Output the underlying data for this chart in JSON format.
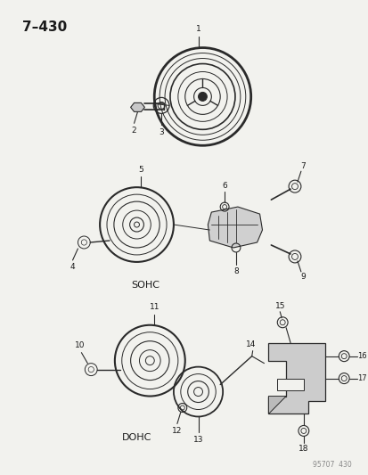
{
  "title": "7–430",
  "bg_color": "#f2f2ee",
  "line_color": "#2a2a2a",
  "text_color": "#1a1a1a",
  "fig_width": 4.14,
  "fig_height": 5.33,
  "dpi": 100,
  "watermark": "95707  430",
  "label_sohc": "SOHC",
  "label_dohc": "DOHC"
}
